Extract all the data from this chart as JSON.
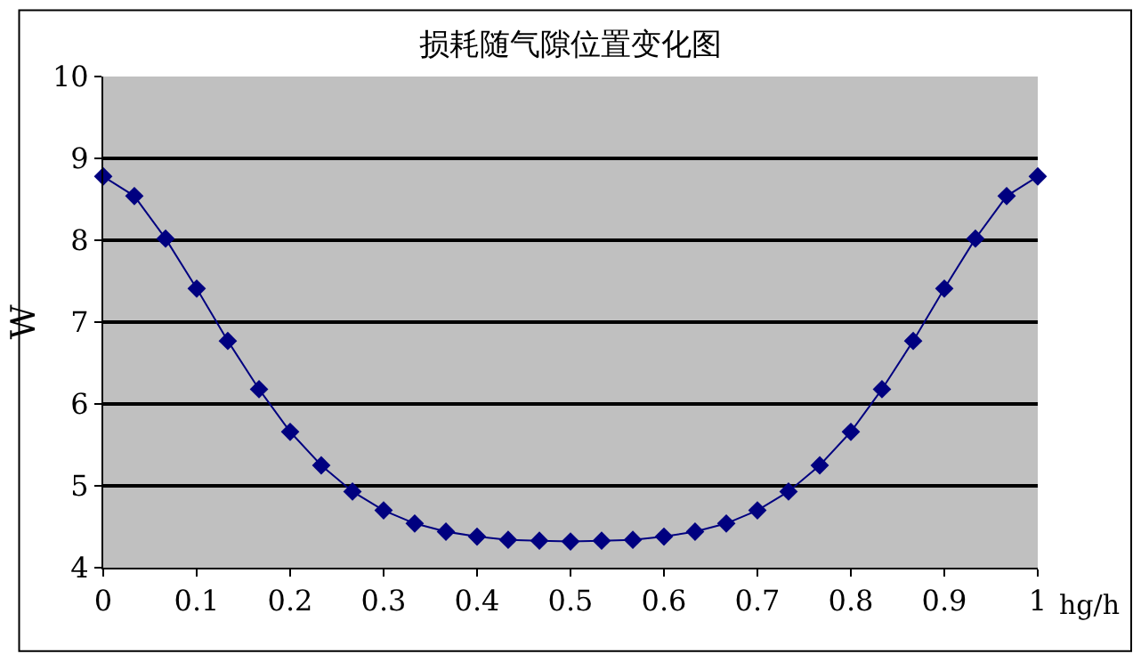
{
  "chart_data": {
    "type": "line",
    "title": "损耗随气隙位置变化图",
    "xlabel": "hg/h",
    "ylabel": "W",
    "x": [
      0,
      0.0333,
      0.0667,
      0.1,
      0.1333,
      0.1667,
      0.2,
      0.2333,
      0.2667,
      0.3,
      0.3333,
      0.3667,
      0.4,
      0.4333,
      0.4667,
      0.5,
      0.5333,
      0.5667,
      0.6,
      0.6333,
      0.6667,
      0.7,
      0.7333,
      0.7667,
      0.8,
      0.8333,
      0.8667,
      0.9,
      0.9333,
      0.9667,
      1
    ],
    "series": [
      {
        "color": "#000080",
        "values": [
          8.78,
          8.54,
          8.02,
          7.41,
          6.77,
          6.18,
          5.66,
          5.25,
          4.93,
          4.7,
          4.54,
          4.44,
          4.38,
          4.34,
          4.33,
          4.32,
          4.33,
          4.34,
          4.38,
          4.44,
          4.54,
          4.7,
          4.93,
          5.25,
          5.66,
          6.18,
          6.77,
          7.41,
          8.02,
          8.54,
          8.78
        ]
      }
    ],
    "xlim": [
      0,
      1
    ],
    "xticks": [
      0,
      0.1,
      0.2,
      0.3,
      0.4,
      0.5,
      0.6,
      0.7,
      0.8,
      0.9,
      1
    ],
    "ylim": [
      4,
      10
    ],
    "yticks": [
      4,
      5,
      6,
      7,
      8,
      9,
      10
    ],
    "grid": "y",
    "marker": "diamond",
    "line_style": "solid",
    "legend": false
  }
}
